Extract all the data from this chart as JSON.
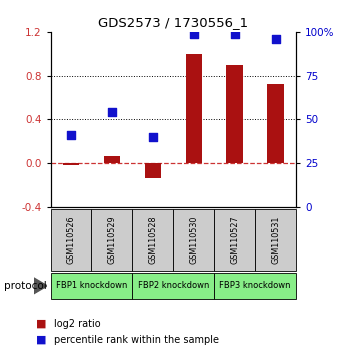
{
  "title": "GDS2573 / 1730556_1",
  "samples": [
    "GSM110526",
    "GSM110529",
    "GSM110528",
    "GSM110530",
    "GSM110527",
    "GSM110531"
  ],
  "log2_ratio": [
    -0.02,
    0.07,
    -0.13,
    1.0,
    0.9,
    0.72
  ],
  "percentile_rank": [
    41,
    54,
    40,
    99,
    99,
    96
  ],
  "protocols": [
    {
      "label": "FBP1 knockdown",
      "start": 0,
      "end": 2
    },
    {
      "label": "FBP2 knockdown",
      "start": 2,
      "end": 4
    },
    {
      "label": "FBP3 knockdown",
      "start": 4,
      "end": 6
    }
  ],
  "ylim_left": [
    -0.4,
    1.2
  ],
  "ylim_right": [
    0,
    100
  ],
  "yticks_left": [
    -0.4,
    0.0,
    0.4,
    0.8,
    1.2
  ],
  "yticks_right": [
    0,
    25,
    50,
    75,
    100
  ],
  "ytick_labels_right": [
    "0",
    "25",
    "50",
    "75",
    "100%"
  ],
  "hlines": [
    0.4,
    0.8
  ],
  "bar_color": "#aa1111",
  "dot_color": "#1111cc",
  "dashed_line_color": "#cc3333",
  "bar_width": 0.4,
  "dot_size": 40,
  "sample_box_color": "#cccccc",
  "protocol_box_color": "#88ee88",
  "legend_items": [
    "log2 ratio",
    "percentile rank within the sample"
  ],
  "protocol_label": "protocol",
  "left_tick_color": "#cc3333",
  "right_tick_color": "#0000cc"
}
